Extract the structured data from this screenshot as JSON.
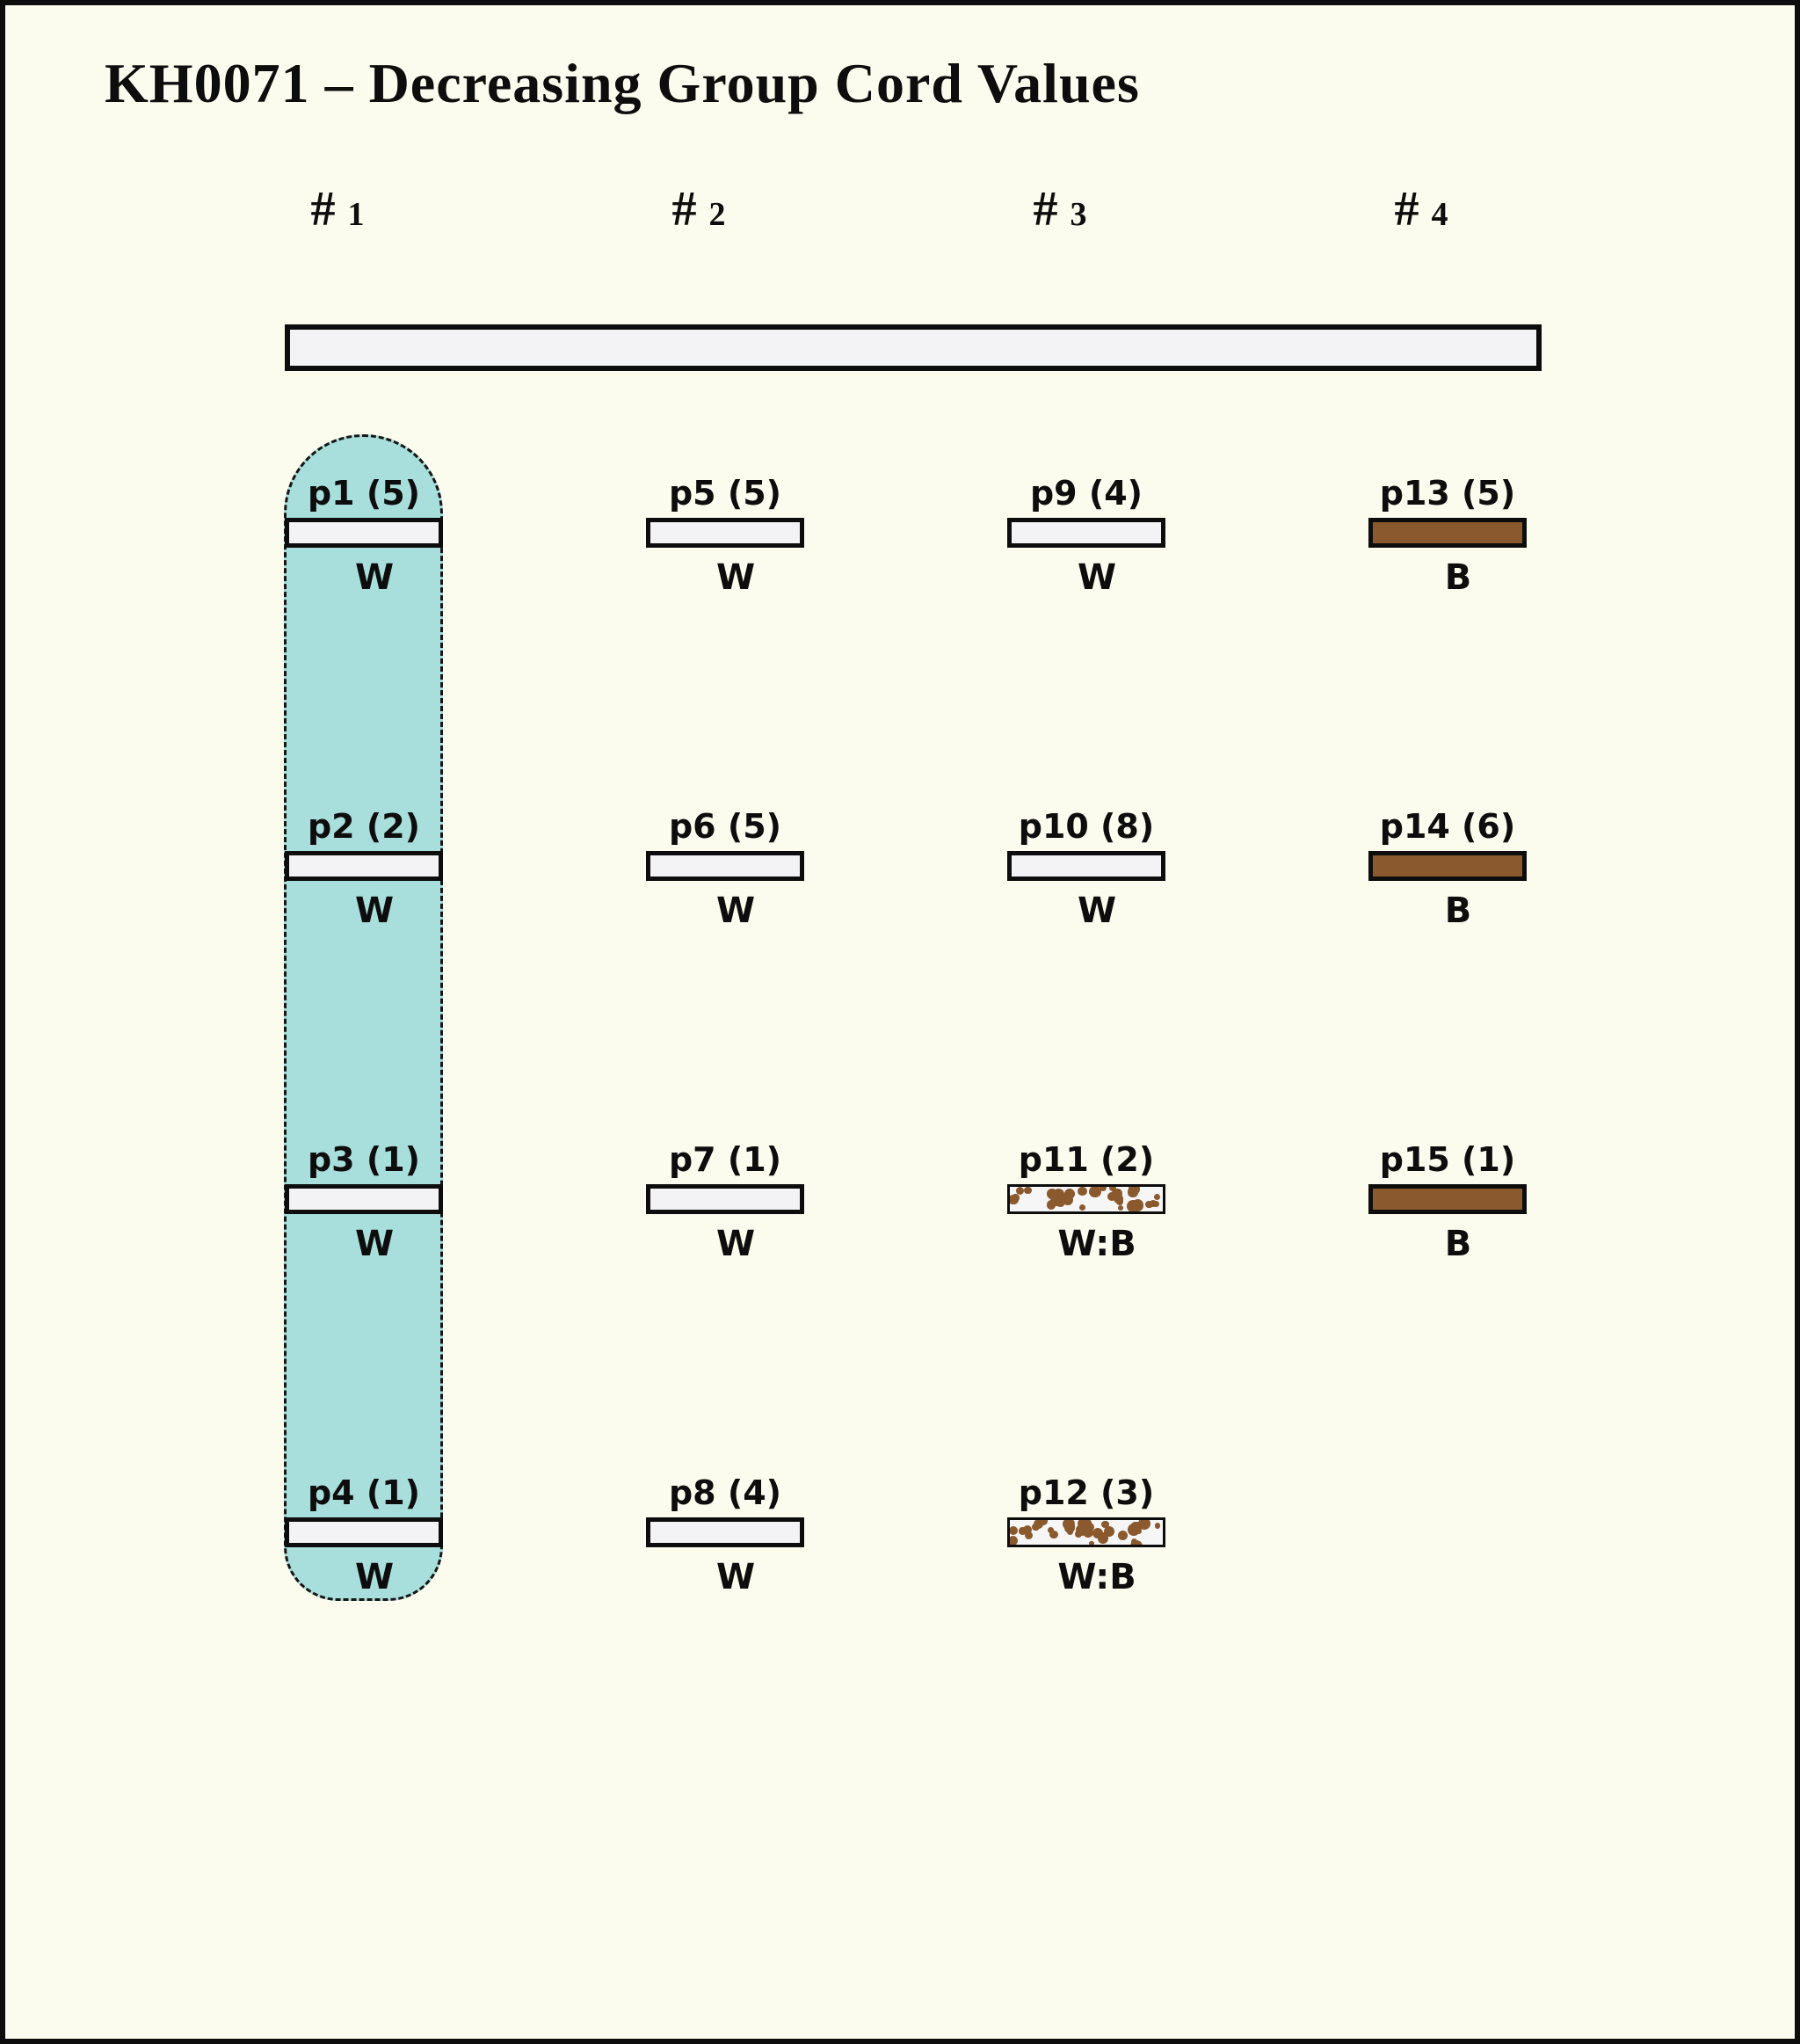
{
  "title": "KH0071 – Decreasing Group Cord Values",
  "colors": {
    "background": "#fcfcee",
    "border_black": "#0d0d0d",
    "bar_white_fill": "#f3f3f5",
    "bar_brown_fill": "#8a5a2e",
    "speckle_brown": "#8a5a2e",
    "group_highlight_teal": "#a8dedb"
  },
  "top_bar": {
    "fill": "#f3f3f5",
    "style": "blank-cord-bar"
  },
  "columns": [
    {
      "header": {
        "symbol": "#",
        "number": "1"
      },
      "highlighted": true,
      "cells": [
        {
          "label": "p1 (5)",
          "code": "W",
          "fill": "white"
        },
        {
          "label": "p2 (2)",
          "code": "W",
          "fill": "white"
        },
        {
          "label": "p3 (1)",
          "code": "W",
          "fill": "white"
        },
        {
          "label": "p4 (1)",
          "code": "W",
          "fill": "white"
        }
      ]
    },
    {
      "header": {
        "symbol": "#",
        "number": "2"
      },
      "highlighted": false,
      "cells": [
        {
          "label": "p5 (5)",
          "code": "W",
          "fill": "white"
        },
        {
          "label": "p6 (5)",
          "code": "W",
          "fill": "white"
        },
        {
          "label": "p7 (1)",
          "code": "W",
          "fill": "white"
        },
        {
          "label": "p8 (4)",
          "code": "W",
          "fill": "white"
        }
      ]
    },
    {
      "header": {
        "symbol": "#",
        "number": "3"
      },
      "highlighted": false,
      "cells": [
        {
          "label": "p9 (4)",
          "code": "W",
          "fill": "white"
        },
        {
          "label": "p10 (8)",
          "code": "W",
          "fill": "white"
        },
        {
          "label": "p11 (2)",
          "code": "W:B",
          "fill": "speckled"
        },
        {
          "label": "p12 (3)",
          "code": "W:B",
          "fill": "speckled"
        }
      ]
    },
    {
      "header": {
        "symbol": "#",
        "number": "4"
      },
      "highlighted": false,
      "cells": [
        {
          "label": "p13 (5)",
          "code": "B",
          "fill": "brown"
        },
        {
          "label": "p14 (6)",
          "code": "B",
          "fill": "brown"
        },
        {
          "label": "p15 (1)",
          "code": "B",
          "fill": "brown"
        }
      ]
    }
  ]
}
